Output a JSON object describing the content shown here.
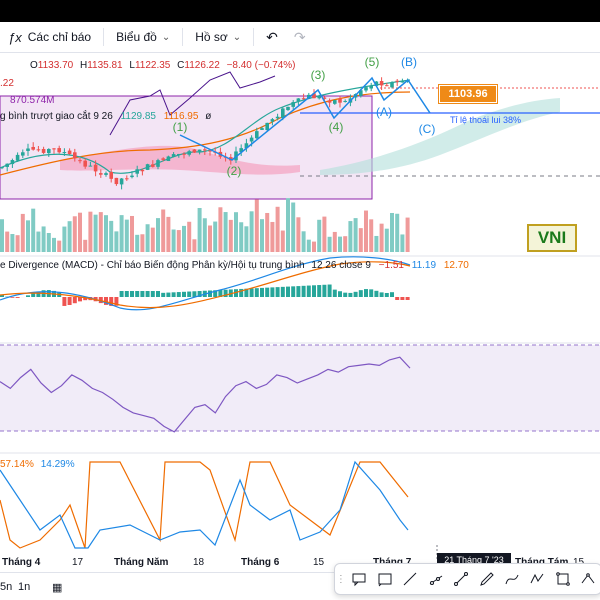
{
  "toolbar": {
    "indicators_label": "Các chỉ báo",
    "chart_label": "Biểu đồ",
    "profile_label": "Hồ sơ",
    "undo_icon": "undo-icon",
    "redo_icon": "redo-icon"
  },
  "legend": {
    "ohlc": {
      "o_label": "O",
      "o": "1133.70",
      "h_label": "H",
      "h": "1135.81",
      "l_label": "L",
      "l": "1122.35",
      "c_label": "C",
      "c": "1126.22",
      "change": "−8.40 (−0.74%)"
    },
    "left_value": ".22",
    "volume_value": "870.574M",
    "ma_name": "g bình trượt giao cắt",
    "ma_params": "9 26",
    "ma_fast": "1129.85",
    "ma_slow": "1116.95",
    "ma_symbol": "ø"
  },
  "annotations": {
    "wave_labels": [
      "(1)",
      "(2)",
      "(3)",
      "(4)",
      "(5)",
      "(A)",
      "(B)",
      "(C)"
    ],
    "price_tag": "1103.96",
    "fib_label": "Tỉ lệ thoái lui 38%",
    "symbol_badge": "VNI"
  },
  "macd": {
    "name": "e Divergence (MACD) - Chỉ báo Biến động Phân kỳ/Hội tụ trung bình",
    "params": "12 26 close 9",
    "hist": "−1.51",
    "macd": "11.19",
    "signal": "12.70"
  },
  "stochastic": {
    "k": "57.14%",
    "d": "14.29%"
  },
  "xaxis": {
    "labels": [
      "Tháng 4",
      "17",
      "Tháng Năm",
      "18",
      "Tháng 6",
      "15",
      "Tháng 7",
      "Tháng Tám",
      "15"
    ],
    "crosshair_date": "21 Tháng 7 '23"
  },
  "bottombar": {
    "range_label": "5n",
    "range2_label": "1n"
  },
  "colors": {
    "up": "#26a69a",
    "down": "#ef5350",
    "elliott": "#43a047",
    "abc": "#1e88e5",
    "price_tag": "#ef8a17",
    "box_fill": "#e1bee7",
    "box_stroke": "#8e24aa"
  },
  "chart_data": {
    "type": "line",
    "title": "",
    "rsi": {
      "values": [
        63,
        58,
        66,
        72,
        62,
        55,
        60,
        68,
        64,
        58,
        55,
        50,
        44,
        40,
        38,
        36,
        30,
        26,
        35,
        44,
        46,
        40,
        52,
        60,
        63,
        58,
        61,
        68,
        66,
        62,
        65,
        68,
        72,
        70,
        74,
        75,
        76,
        75,
        79,
        81,
        73
      ]
    }
  }
}
